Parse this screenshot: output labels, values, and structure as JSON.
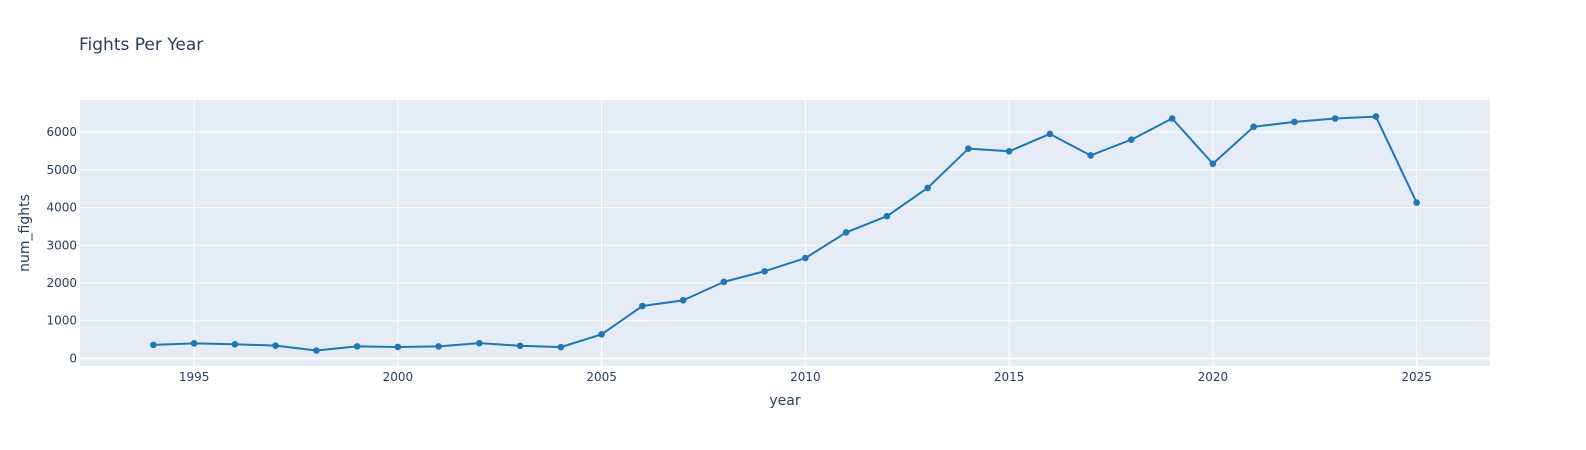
{
  "chart_data": {
    "type": "line",
    "title": "Fights Per Year",
    "xlabel": "year",
    "ylabel": "num_fights",
    "xlim": [
      1992.2,
      2026.8
    ],
    "ylim": [
      -200,
      6850
    ],
    "x_ticks": [
      1995,
      2000,
      2005,
      2010,
      2015,
      2020,
      2025
    ],
    "y_ticks": [
      0,
      1000,
      2000,
      3000,
      4000,
      5000,
      6000
    ],
    "grid": true,
    "legend": "none",
    "colors": {
      "line": "#1f77b4",
      "plot_bg": "#e5ecf6",
      "grid": "#ffffff",
      "text": "#2a3f5f"
    },
    "series": [
      {
        "x": [
          1994,
          1995,
          1996,
          1997,
          1998,
          1999,
          2000,
          2001,
          2002,
          2003,
          2004,
          2005,
          2006,
          2007,
          2008,
          2009,
          2010,
          2011,
          2012,
          2013,
          2014,
          2015,
          2016,
          2017,
          2018,
          2019,
          2020,
          2021,
          2022,
          2023,
          2024,
          2025
        ],
        "y": [
          360,
          400,
          375,
          340,
          210,
          320,
          305,
          320,
          405,
          335,
          300,
          640,
          1390,
          1540,
          2030,
          2310,
          2660,
          3340,
          3770,
          4520,
          5560,
          5490,
          5950,
          5380,
          5800,
          6360,
          5160,
          6140,
          6270,
          6360,
          6410,
          4130
        ]
      }
    ]
  }
}
